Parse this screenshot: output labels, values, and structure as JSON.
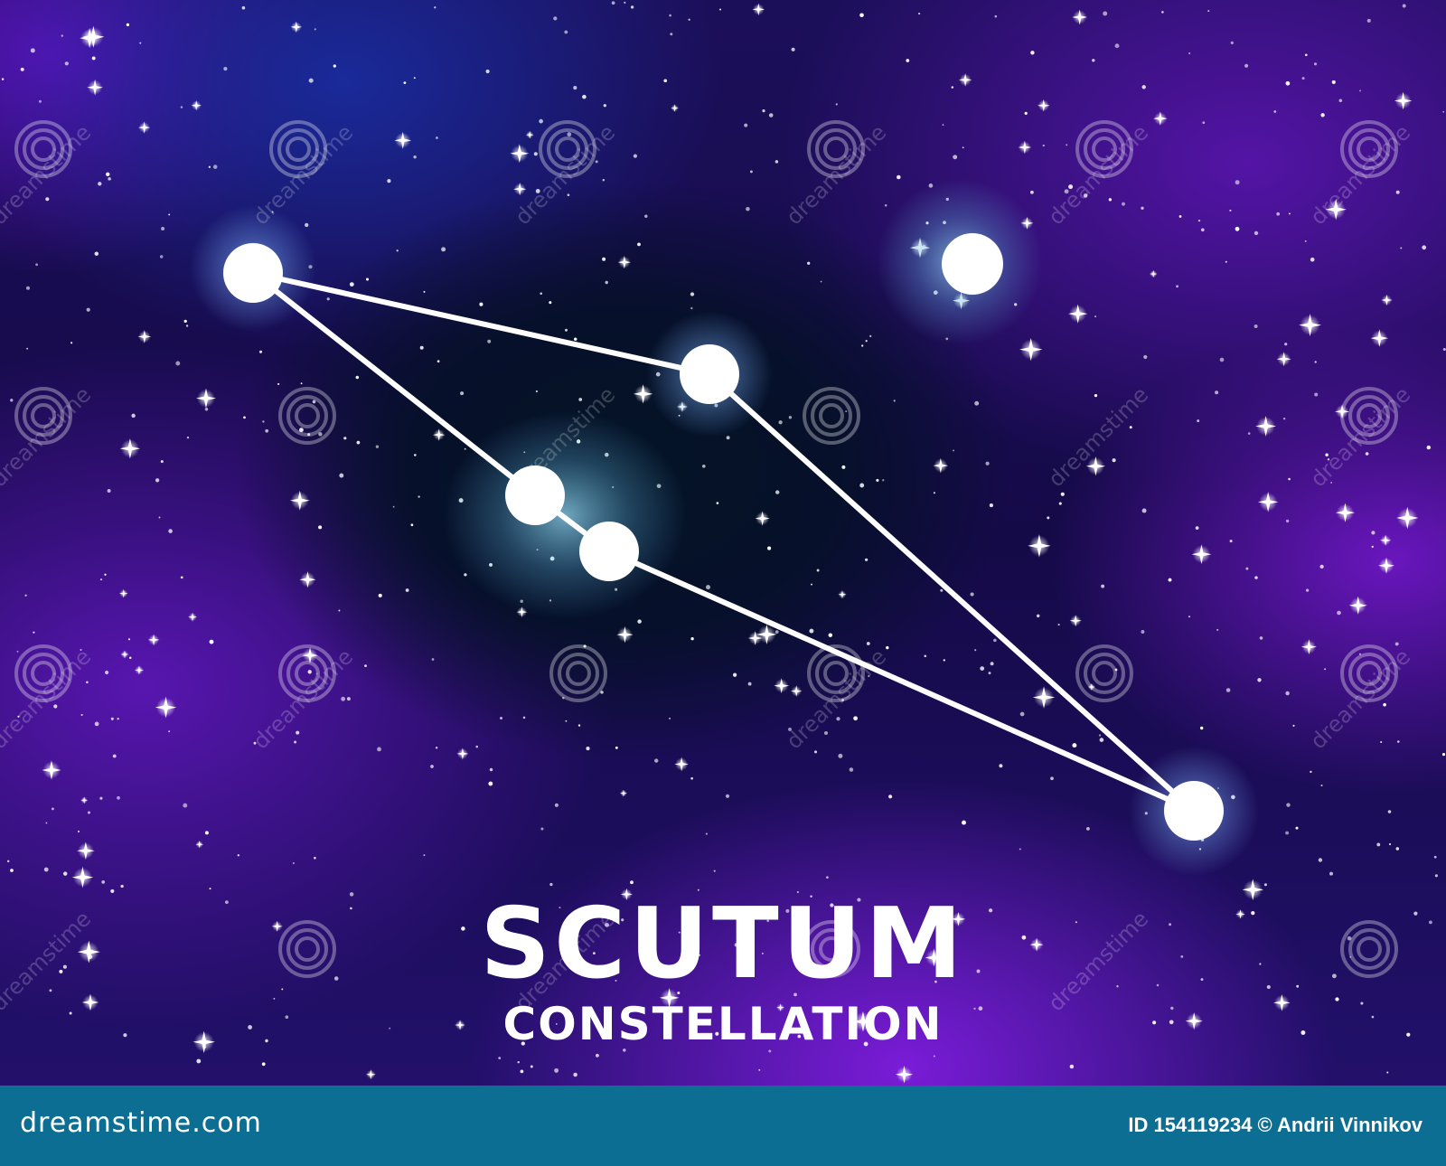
{
  "poster": {
    "title": "SCUTUM",
    "subtitle": "CONSTELLATION"
  },
  "footer": {
    "logo": "dreamstime.com",
    "credit": "ID 154119234 © Andrii Vinnikov"
  },
  "watermark_text": "dreamstime",
  "constellation": {
    "star_color": "#ffffff",
    "line_color": "#ffffff",
    "halo_color": "#7fb6ff"
  },
  "colors": {
    "sky_purple": "#5a16b8",
    "sky_dark_blue": "#06102a",
    "footer_blue": "#0c6e93"
  }
}
